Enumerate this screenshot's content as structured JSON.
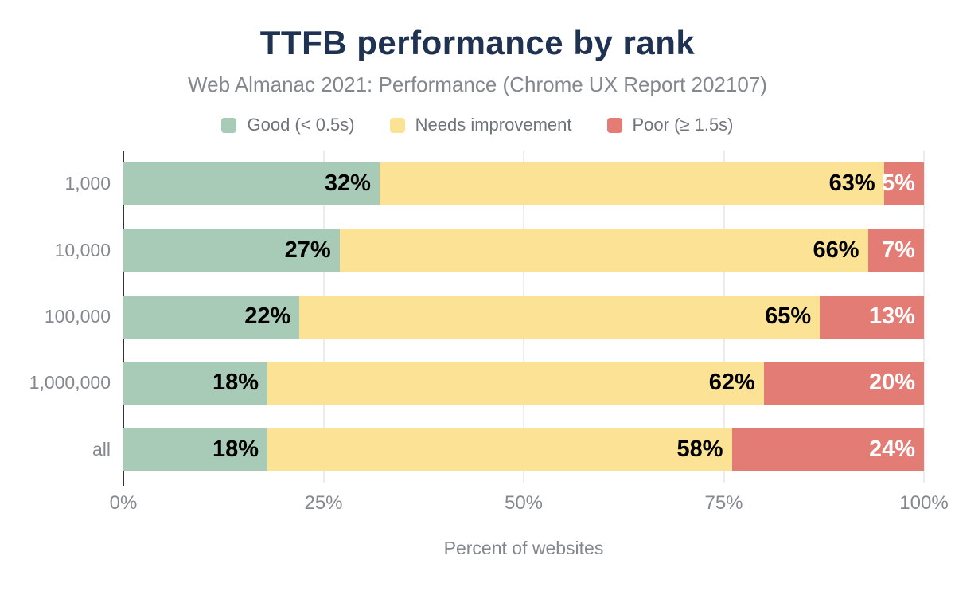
{
  "header": {
    "title": "TTFB performance by rank",
    "subtitle": "Web Almanac 2021: Performance (Chrome UX Report 202107)"
  },
  "colors": {
    "title": "#1f3251",
    "muted_text": "#85898f",
    "axis_line": "#333333",
    "gridline": "#ececec",
    "good": "#a8cbb7",
    "needs_improvement": "#fce294",
    "poor": "#e27c74"
  },
  "chart_data": {
    "type": "bar",
    "orientation": "horizontal",
    "stacked": true,
    "title": "TTFB performance by rank",
    "subtitle": "Web Almanac 2021: Performance (Chrome UX Report 202107)",
    "categories": [
      "1,000",
      "10,000",
      "100,000",
      "1,000,000",
      "all"
    ],
    "series": [
      {
        "name": "Good (< 0.5s)",
        "color": "#a8cbb7",
        "label_color": "#000000",
        "values": [
          32,
          27,
          22,
          18,
          18
        ]
      },
      {
        "name": "Needs improvement",
        "color": "#fce294",
        "label_color": "#000000",
        "values": [
          63,
          66,
          65,
          62,
          58
        ]
      },
      {
        "name": "Poor (≥ 1.5s)",
        "color": "#e27c74",
        "label_color": "#ffffff",
        "values": [
          5,
          7,
          13,
          20,
          24
        ]
      }
    ],
    "value_label_suffix": "%",
    "xlabel": "Percent of websites",
    "ylabel": "",
    "xlim": [
      0,
      100
    ],
    "x_ticks": [
      {
        "value": 0,
        "label": "0%"
      },
      {
        "value": 25,
        "label": "25%"
      },
      {
        "value": 50,
        "label": "50%"
      },
      {
        "value": 75,
        "label": "75%"
      },
      {
        "value": 100,
        "label": "100%"
      }
    ],
    "grid": "vertical",
    "legend_position": "top"
  }
}
